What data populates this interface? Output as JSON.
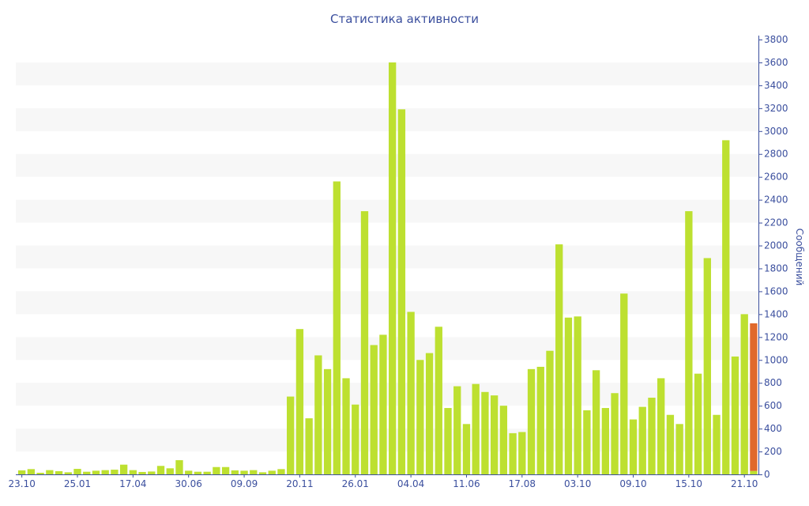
{
  "chart_data": {
    "type": "bar",
    "title": "Статистика активности",
    "xlabel": "",
    "ylabel": "Сообщений",
    "ylim": [
      0,
      3800
    ],
    "yticks": [
      0,
      200,
      400,
      600,
      800,
      1000,
      1200,
      1400,
      1600,
      1800,
      2000,
      2200,
      2400,
      2600,
      2800,
      3000,
      3200,
      3400,
      3600,
      3800
    ],
    "y_axis_position": "right",
    "grid": "alternating horizontal bands",
    "x_tick_labels": [
      "23.10",
      "25.01",
      "17.04",
      "30.06",
      "09.09",
      "20.11",
      "26.01",
      "04.04",
      "11.06",
      "17.08",
      "03.10",
      "09.10",
      "15.10",
      "21.10"
    ],
    "x_tick_every": 6,
    "series": [
      {
        "color": "#bde030",
        "values": [
          35,
          46,
          14,
          37,
          28,
          18,
          48,
          23,
          32,
          37,
          41,
          85,
          37,
          21,
          25,
          74,
          53,
          124,
          32,
          23,
          23,
          64,
          64,
          35,
          32,
          37,
          18,
          32,
          46,
          680,
          1270,
          490,
          1040,
          920,
          2560,
          840,
          610,
          2300,
          1130,
          1220,
          3600,
          3190,
          1420,
          1000,
          1060,
          1290,
          580,
          770,
          440,
          790,
          720,
          690,
          600,
          360,
          370,
          920,
          940,
          1080,
          2010,
          1370,
          1380,
          560,
          910,
          580,
          710,
          1580,
          480,
          590,
          670,
          840,
          520,
          440,
          2300,
          880,
          1890,
          520,
          2920,
          1030,
          1400,
          30
        ]
      },
      {
        "color": "#e0692c",
        "values": [
          0,
          0,
          0,
          0,
          0,
          0,
          0,
          0,
          0,
          0,
          0,
          0,
          0,
          0,
          0,
          0,
          0,
          0,
          0,
          0,
          0,
          0,
          0,
          0,
          0,
          0,
          0,
          0,
          0,
          0,
          0,
          0,
          0,
          0,
          0,
          0,
          0,
          0,
          0,
          0,
          0,
          0,
          0,
          0,
          0,
          0,
          0,
          0,
          0,
          0,
          0,
          0,
          0,
          0,
          0,
          0,
          0,
          0,
          0,
          0,
          0,
          0,
          0,
          0,
          0,
          0,
          0,
          0,
          0,
          0,
          0,
          0,
          0,
          0,
          0,
          0,
          0,
          0,
          0,
          1290
        ]
      }
    ]
  }
}
